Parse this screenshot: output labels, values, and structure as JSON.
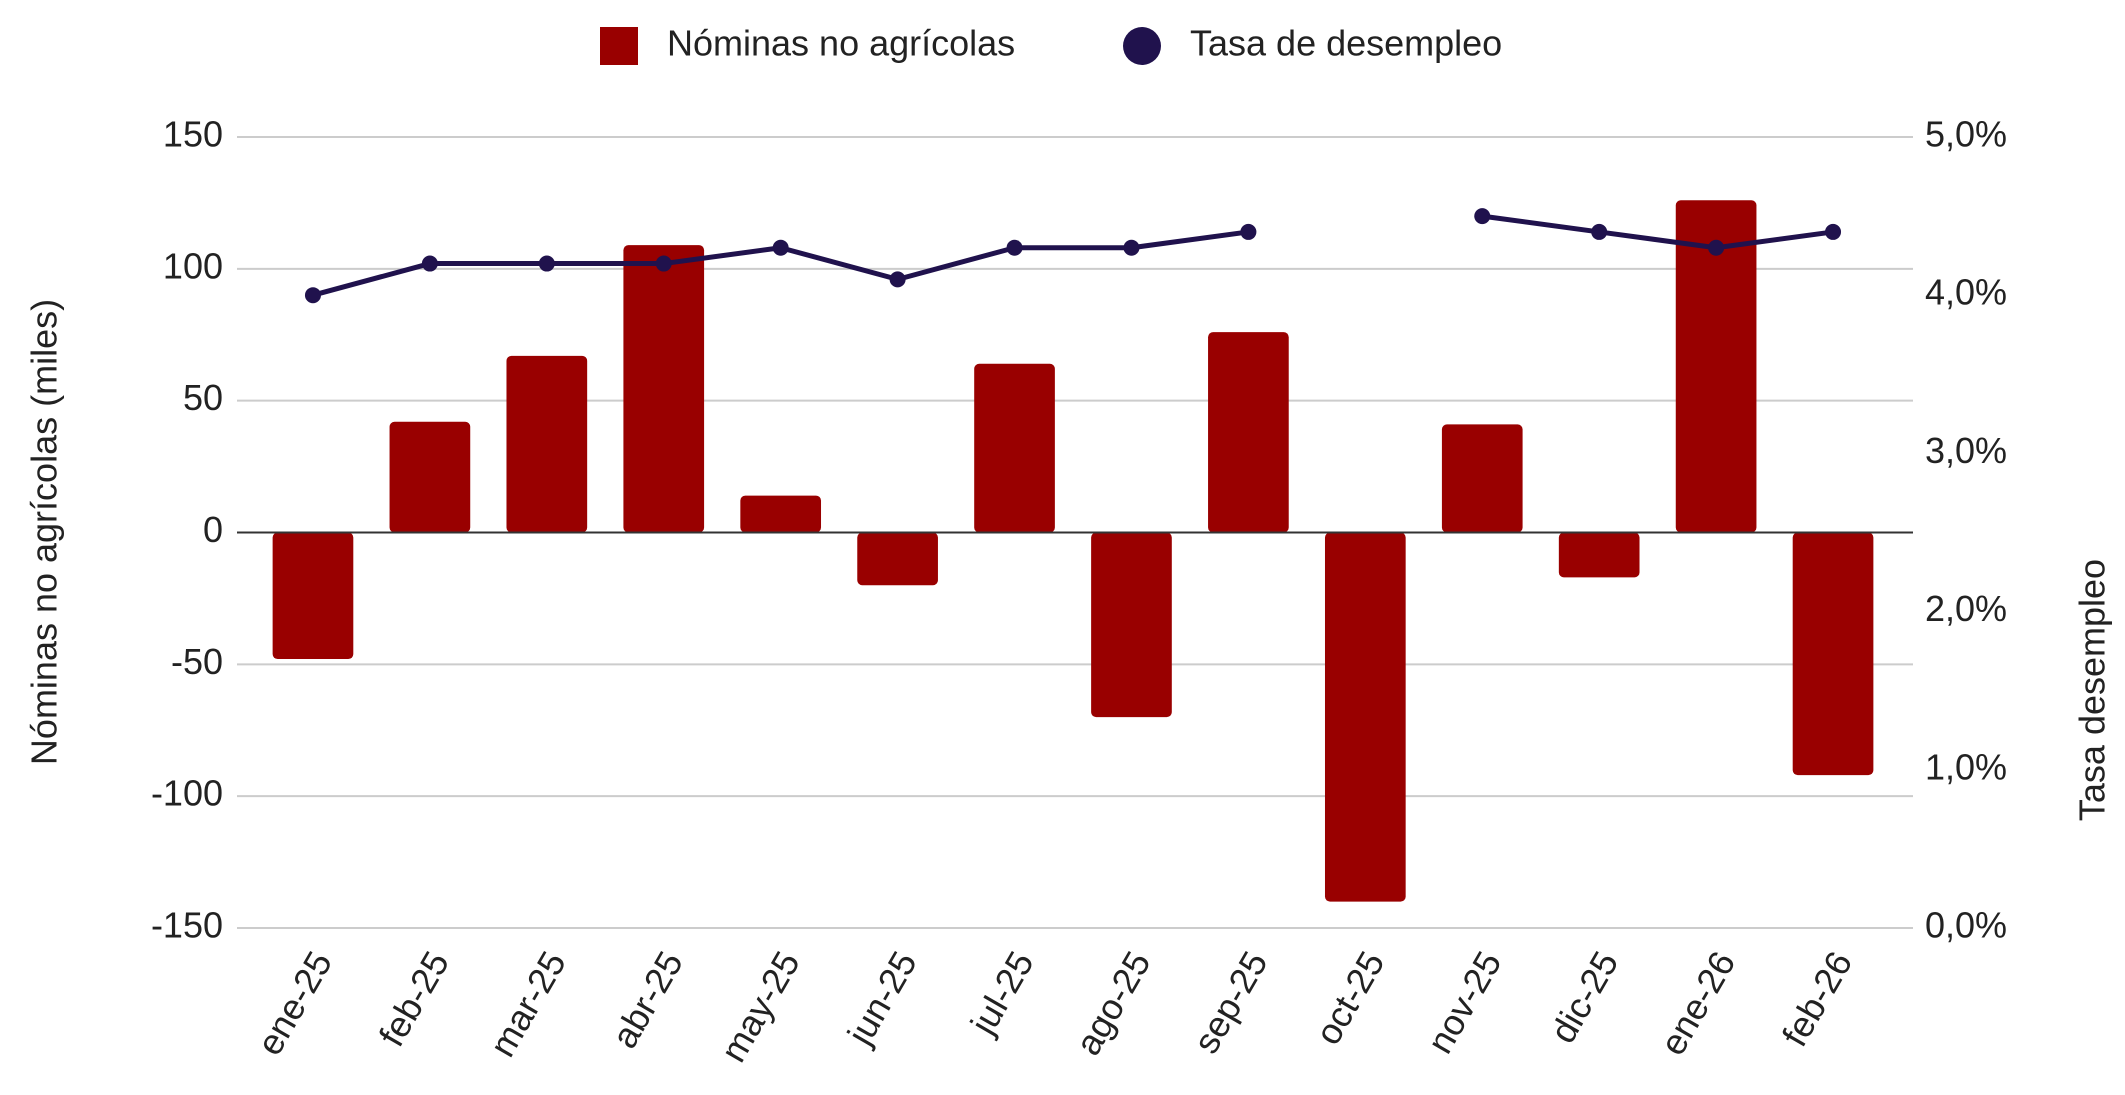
{
  "chart_data": {
    "type": "bar-line",
    "categories": [
      "ene-25",
      "feb-25",
      "mar-25",
      "abr-25",
      "may-25",
      "jun-25",
      "jul-25",
      "ago-25",
      "sep-25",
      "oct-25",
      "nov-25",
      "dic-25",
      "ene-26",
      "feb-26"
    ],
    "series": [
      {
        "name": "Nóminas no agrícolas",
        "type": "bar",
        "color": "#990000",
        "values": [
          -48,
          42,
          67,
          109,
          14,
          -20,
          64,
          -70,
          76,
          -140,
          41,
          -17,
          126,
          -92
        ]
      },
      {
        "name": "Tasa de desempleo",
        "type": "line",
        "axis": "y2",
        "color": "#20124d",
        "values": [
          4.0,
          4.2,
          4.2,
          4.2,
          4.3,
          4.1,
          4.3,
          4.3,
          4.4,
          null,
          4.5,
          4.4,
          4.3,
          4.4
        ]
      }
    ],
    "ylabel": "Nóminas no agrícolas (miles)",
    "y2label": "Tasa desempleo",
    "ylim": [
      -150,
      150
    ],
    "yticks": [
      -150,
      -100,
      -50,
      0,
      50,
      100,
      150
    ],
    "y2lim": [
      0,
      5
    ],
    "y2ticks": [
      {
        "value": 0,
        "label": "0,0%"
      },
      {
        "value": 1,
        "label": "1,0%"
      },
      {
        "value": 2,
        "label": "2,0%"
      },
      {
        "value": 3,
        "label": "3,0%"
      },
      {
        "value": 4,
        "label": "4,0%"
      },
      {
        "value": 5,
        "label": "5,0%"
      }
    ],
    "grid": true,
    "legend": "top"
  }
}
